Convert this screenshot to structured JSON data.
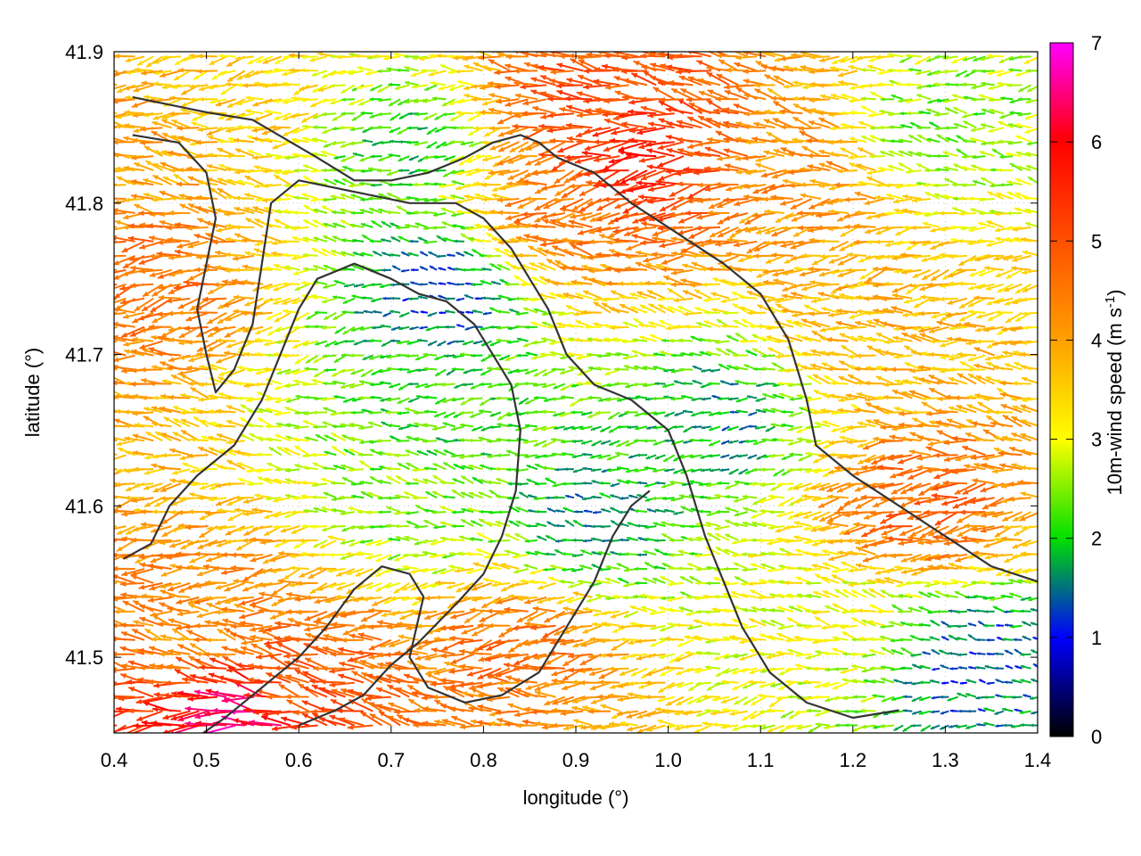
{
  "chart_data": {
    "type": "vector-field",
    "xlabel": "longitude (°)",
    "ylabel": "latitude (°)",
    "colorbar_label_main": "10m-wind speed (m s",
    "colorbar_label_sup": "-1",
    "colorbar_label_end": ")",
    "xlim": [
      0.4,
      1.4
    ],
    "ylim": [
      41.45,
      41.9
    ],
    "xticks": [
      0.4,
      0.5,
      0.6,
      0.7,
      0.8,
      0.9,
      1.0,
      1.1,
      1.2,
      1.3,
      1.4
    ],
    "xtick_labels": [
      "0.4",
      "0.5",
      "0.6",
      "0.7",
      "0.8",
      "0.9",
      "1.0",
      "1.1",
      "1.2",
      "1.3",
      "1.4"
    ],
    "yticks": [
      41.5,
      41.6,
      41.7,
      41.8,
      41.9
    ],
    "ytick_labels": [
      "41.5",
      "41.6",
      "41.7",
      "41.8",
      "41.9"
    ],
    "colorbar_range": [
      0,
      7
    ],
    "colorbar_ticks": [
      0,
      1,
      2,
      3,
      4,
      5,
      6,
      7
    ],
    "colorbar_tick_labels": [
      "0",
      "1",
      "2",
      "3",
      "4",
      "5",
      "6",
      "7"
    ],
    "colormap": [
      "#000000",
      "#0000ff",
      "#00e000",
      "#ffff00",
      "#ffa000",
      "#ff5000",
      "#ff0000",
      "#ff00ff"
    ],
    "grid": "dotted",
    "vector_field": {
      "x_start": 0.403,
      "x_step": 0.0099,
      "nx": 102,
      "y_start": 41.455,
      "y_step": 0.0094,
      "ny": 48,
      "mean_direction": "westward",
      "speed_zones": [
        {
          "lon": 0.45,
          "lat": 41.75,
          "speed": 4.6
        },
        {
          "lon": 0.43,
          "lat": 41.85,
          "speed": 4.0
        },
        {
          "lon": 0.55,
          "lat": 41.88,
          "speed": 3.5
        },
        {
          "lon": 0.72,
          "lat": 41.84,
          "speed": 2.0
        },
        {
          "lon": 0.76,
          "lat": 41.74,
          "speed": 1.3
        },
        {
          "lon": 0.76,
          "lat": 41.66,
          "speed": 2.1
        },
        {
          "lon": 0.73,
          "lat": 41.6,
          "speed": 2.4
        },
        {
          "lon": 0.92,
          "lat": 41.59,
          "speed": 1.6
        },
        {
          "lon": 1.06,
          "lat": 41.66,
          "speed": 1.7
        },
        {
          "lon": 0.98,
          "lat": 41.83,
          "speed": 5.6
        },
        {
          "lon": 0.9,
          "lat": 41.79,
          "speed": 4.5
        },
        {
          "lon": 1.15,
          "lat": 41.82,
          "speed": 4.2
        },
        {
          "lon": 1.3,
          "lat": 41.85,
          "speed": 2.4
        },
        {
          "lon": 1.22,
          "lat": 41.72,
          "speed": 3.8
        },
        {
          "lon": 1.28,
          "lat": 41.6,
          "speed": 4.8
        },
        {
          "lon": 1.33,
          "lat": 41.5,
          "speed": 1.3
        },
        {
          "lon": 1.18,
          "lat": 41.52,
          "speed": 3.0
        },
        {
          "lon": 0.85,
          "lat": 41.51,
          "speed": 4.6
        },
        {
          "lon": 0.6,
          "lat": 41.48,
          "speed": 4.8
        },
        {
          "lon": 0.5,
          "lat": 41.52,
          "speed": 4.2
        },
        {
          "lon": 0.55,
          "lat": 41.46,
          "speed": 6.5
        },
        {
          "lon": 0.92,
          "lat": 41.87,
          "speed": 5.0
        }
      ]
    },
    "contours": [
      [
        [
          0.42,
          41.87
        ],
        [
          0.5,
          41.86
        ],
        [
          0.55,
          41.855
        ],
        [
          0.62,
          41.83
        ],
        [
          0.66,
          41.815
        ],
        [
          0.7,
          41.815
        ],
        [
          0.74,
          41.82
        ],
        [
          0.78,
          41.83
        ],
        [
          0.81,
          41.84
        ],
        [
          0.84,
          41.845
        ],
        [
          0.86,
          41.84
        ],
        [
          0.88,
          41.83
        ],
        [
          0.92,
          41.82
        ],
        [
          0.96,
          41.8
        ],
        [
          1.01,
          41.78
        ],
        [
          1.06,
          41.76
        ],
        [
          1.1,
          41.74
        ],
        [
          1.13,
          41.71
        ],
        [
          1.15,
          41.67
        ],
        [
          1.16,
          41.64
        ],
        [
          1.2,
          41.62
        ],
        [
          1.25,
          41.6
        ],
        [
          1.3,
          41.58
        ],
        [
          1.35,
          41.56
        ],
        [
          1.4,
          41.55
        ]
      ],
      [
        [
          0.42,
          41.845
        ],
        [
          0.47,
          41.84
        ],
        [
          0.5,
          41.82
        ],
        [
          0.51,
          41.79
        ],
        [
          0.5,
          41.76
        ],
        [
          0.49,
          41.73
        ],
        [
          0.5,
          41.7
        ],
        [
          0.51,
          41.675
        ],
        [
          0.53,
          41.69
        ],
        [
          0.55,
          41.72
        ],
        [
          0.56,
          41.76
        ],
        [
          0.57,
          41.8
        ],
        [
          0.6,
          41.815
        ],
        [
          0.64,
          41.81
        ],
        [
          0.68,
          41.805
        ],
        [
          0.72,
          41.8
        ],
        [
          0.77,
          41.8
        ],
        [
          0.8,
          41.79
        ],
        [
          0.83,
          41.77
        ],
        [
          0.85,
          41.75
        ],
        [
          0.87,
          41.73
        ],
        [
          0.89,
          41.7
        ],
        [
          0.92,
          41.68
        ],
        [
          0.96,
          41.67
        ],
        [
          1.0,
          41.65
        ],
        [
          1.02,
          41.62
        ],
        [
          1.04,
          41.58
        ],
        [
          1.06,
          41.55
        ],
        [
          1.08,
          41.52
        ],
        [
          1.11,
          41.49
        ],
        [
          1.15,
          41.47
        ],
        [
          1.2,
          41.46
        ],
        [
          1.25,
          41.465
        ]
      ],
      [
        [
          0.41,
          41.565
        ],
        [
          0.44,
          41.575
        ],
        [
          0.46,
          41.6
        ],
        [
          0.49,
          41.62
        ],
        [
          0.53,
          41.64
        ],
        [
          0.56,
          41.67
        ],
        [
          0.58,
          41.7
        ],
        [
          0.6,
          41.73
        ],
        [
          0.62,
          41.75
        ],
        [
          0.66,
          41.76
        ],
        [
          0.7,
          41.75
        ],
        [
          0.73,
          41.74
        ],
        [
          0.76,
          41.735
        ],
        [
          0.79,
          41.72
        ],
        [
          0.81,
          41.7
        ],
        [
          0.83,
          41.68
        ],
        [
          0.84,
          41.65
        ],
        [
          0.835,
          41.61
        ],
        [
          0.82,
          41.58
        ],
        [
          0.8,
          41.555
        ],
        [
          0.77,
          41.535
        ],
        [
          0.73,
          41.51
        ],
        [
          0.7,
          41.495
        ],
        [
          0.67,
          41.475
        ],
        [
          0.64,
          41.465
        ],
        [
          0.6,
          41.455
        ]
      ],
      [
        [
          0.35,
          41.4
        ],
        [
          0.45,
          41.43
        ],
        [
          0.52,
          41.46
        ],
        [
          0.56,
          41.48
        ],
        [
          0.6,
          41.5
        ],
        [
          0.63,
          41.52
        ],
        [
          0.66,
          41.545
        ],
        [
          0.69,
          41.56
        ],
        [
          0.72,
          41.555
        ],
        [
          0.735,
          41.54
        ],
        [
          0.72,
          41.5
        ],
        [
          0.74,
          41.48
        ],
        [
          0.78,
          41.47
        ],
        [
          0.82,
          41.475
        ],
        [
          0.86,
          41.49
        ],
        [
          0.88,
          41.51
        ],
        [
          0.9,
          41.53
        ],
        [
          0.92,
          41.55
        ],
        [
          0.94,
          41.58
        ],
        [
          0.96,
          41.6
        ],
        [
          0.98,
          41.61
        ]
      ]
    ]
  }
}
